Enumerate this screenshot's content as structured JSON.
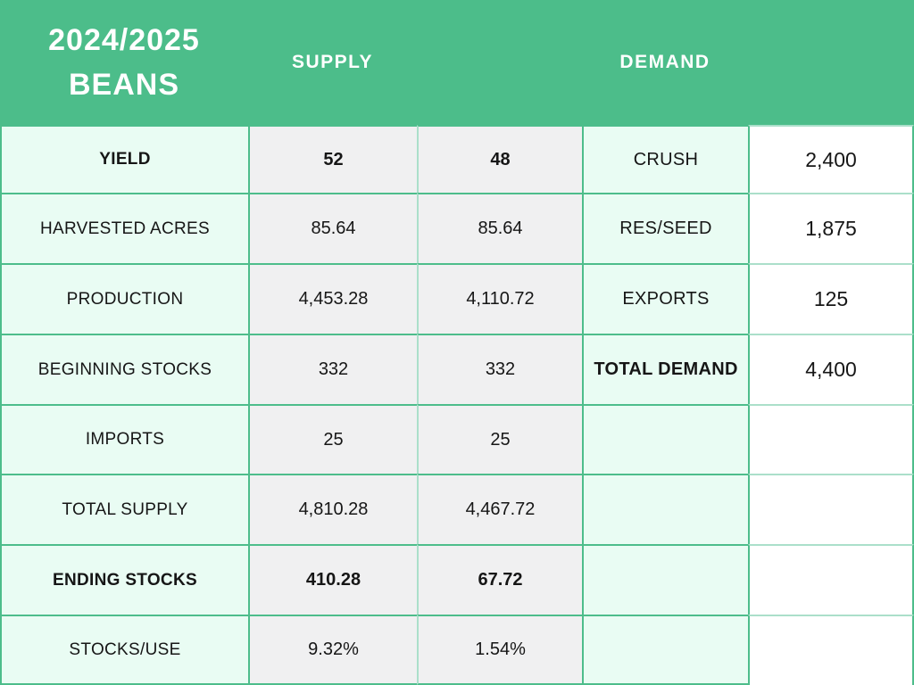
{
  "header": {
    "title_line1": "2024/2025",
    "title_line2": "BEANS",
    "supply_label": "SUPPLY",
    "demand_label": "DEMAND"
  },
  "colors": {
    "header_green": "#4cbd8a",
    "border_green": "#4dbd8b",
    "border_light_green": "#abdfca",
    "mint_cell": "#e9fcf3",
    "gray_cell": "#f0f0f1",
    "white_cell": "#ffffff",
    "text_dark": "#161616",
    "text_white": "#ffffff"
  },
  "chart_data": {
    "type": "table",
    "title": "2024/2025 BEANS",
    "groups": [
      "SUPPLY",
      "DEMAND"
    ],
    "rows": [
      {
        "label": "YIELD",
        "supply": [
          "52",
          "48"
        ],
        "demand_label": "CRUSH",
        "demand_value": "2,400"
      },
      {
        "label": "HARVESTED ACRES",
        "supply": [
          "85.64",
          "85.64"
        ],
        "demand_label": "RES/SEED",
        "demand_value": "1,875"
      },
      {
        "label": "PRODUCTION",
        "supply": [
          "4,453.28",
          "4,110.72"
        ],
        "demand_label": "EXPORTS",
        "demand_value": "125"
      },
      {
        "label": "BEGINNING STOCKS",
        "supply": [
          "332",
          "332"
        ],
        "demand_label": "TOTAL DEMAND",
        "demand_value": "4,400"
      },
      {
        "label": "IMPORTS",
        "supply": [
          "25",
          "25"
        ],
        "demand_label": "",
        "demand_value": ""
      },
      {
        "label": "TOTAL SUPPLY",
        "supply": [
          "4,810.28",
          "4,467.72"
        ],
        "demand_label": "",
        "demand_value": ""
      },
      {
        "label": "ENDING STOCKS",
        "supply": [
          "410.28",
          "67.72"
        ],
        "demand_label": "",
        "demand_value": ""
      },
      {
        "label": "STOCKS/USE",
        "supply": [
          "9.32%",
          "1.54%"
        ],
        "demand_label": "",
        "demand_value": ""
      }
    ]
  }
}
